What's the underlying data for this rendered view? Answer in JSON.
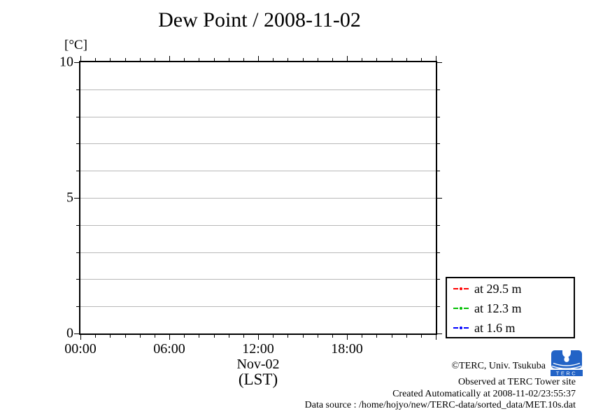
{
  "title": "Dew Point / 2008-11-02",
  "chart_data": {
    "type": "line",
    "title": "Dew Point / 2008-11-02",
    "ylabel_unit": "[°C]",
    "xlabel_date": "Nov-02",
    "xlabel_tz": "(LST)",
    "ylim": [
      0,
      10
    ],
    "xlim_minutes": [
      0,
      1440
    ],
    "x_minor_step_minutes": 60,
    "y_minor_step": 1,
    "x_ticks": [
      {
        "minutes": 0,
        "label": "00:00"
      },
      {
        "minutes": 360,
        "label": "06:00"
      },
      {
        "minutes": 720,
        "label": "12:00"
      },
      {
        "minutes": 1080,
        "label": "18:00"
      },
      {
        "minutes": 1440,
        "label": ""
      }
    ],
    "y_ticks": [
      {
        "value": 0,
        "label": "0"
      },
      {
        "value": 5,
        "label": "5"
      },
      {
        "value": 10,
        "label": "10"
      }
    ],
    "grid": "horizontal gridlines at every 1 °C",
    "grid_color": "#b8b8b8",
    "legend_position": "outside-right-bottom",
    "series": [
      {
        "name": "at 29.5 m",
        "color": "#ff0000",
        "points": []
      },
      {
        "name": "at 12.3 m",
        "color": "#00c000",
        "points": []
      },
      {
        "name": "at 1.6 m",
        "color": "#0000ff",
        "points": []
      }
    ]
  },
  "footer": {
    "copyright": "©TERC, Univ. Tsukuba",
    "observed": "Observed at TERC Tower site",
    "created": "Created Automatically at 2008-11-02/23:55:37",
    "data_source": "Data source : /home/hojyo/new/TERC-data/sorted_data/MET.10s.dat",
    "logo_text": "TERC",
    "logo_color": "#2263c6"
  }
}
